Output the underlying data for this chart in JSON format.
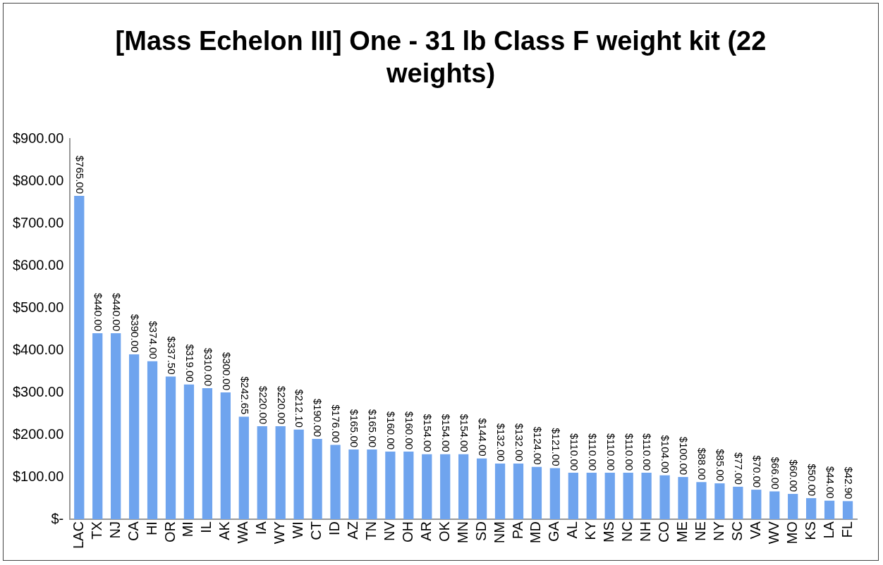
{
  "chart_data": {
    "type": "bar",
    "title": "[Mass Echelon III]  One - 31 lb Class F weight kit (22 weights)",
    "categories": [
      "LAC",
      "TX",
      "NJ",
      "CA",
      "HI",
      "OR",
      "MI",
      "IL",
      "AK",
      "WA",
      "IA",
      "WY",
      "WI",
      "CT",
      "ID",
      "AZ",
      "TN",
      "NV",
      "OH",
      "AR",
      "OK",
      "MN",
      "SD",
      "NM",
      "PA",
      "MD",
      "GA",
      "AL",
      "KY",
      "MS",
      "NC",
      "NH",
      "CO",
      "ME",
      "NE",
      "NY",
      "SC",
      "VA",
      "WV",
      "MO",
      "KS",
      "LA",
      "FL"
    ],
    "values": [
      765,
      440,
      440,
      390,
      374,
      337.5,
      319,
      310,
      300,
      242.65,
      220,
      220,
      212.1,
      190,
      176,
      165,
      165,
      160,
      160,
      154,
      154,
      154,
      144,
      132,
      132,
      124,
      121,
      110,
      110,
      110,
      110,
      110,
      104,
      100,
      88,
      85,
      77,
      70,
      66,
      60,
      50,
      44,
      42.9
    ],
    "value_labels": [
      "$765.00",
      "$440.00",
      "$440.00",
      "$390.00",
      "$374.00",
      "$337.50",
      "$319.00",
      "$310.00",
      "$300.00",
      "$242.65",
      "$220.00",
      "$220.00",
      "$212.10",
      "$190.00",
      "$176.00",
      "$165.00",
      "$165.00",
      "$160.00",
      "$160.00",
      "$154.00",
      "$154.00",
      "$154.00",
      "$144.00",
      "$132.00",
      "$132.00",
      "$124.00",
      "$121.00",
      "$110.00",
      "$110.00",
      "$110.00",
      "$110.00",
      "$110.00",
      "$104.00",
      "$100.00",
      "$88.00",
      "$85.00",
      "$77.00",
      "$70.00",
      "$66.00",
      "$60.00",
      "$50.00",
      "$44.00",
      "$42.90"
    ],
    "color": "#6fa4ee",
    "ylim": [
      0,
      900
    ],
    "yticks": [
      {
        "value": 0,
        "label": "$-"
      },
      {
        "value": 100,
        "label": "$100.00"
      },
      {
        "value": 200,
        "label": "$200.00"
      },
      {
        "value": 300,
        "label": "$300.00"
      },
      {
        "value": 400,
        "label": "$400.00"
      },
      {
        "value": 500,
        "label": "$500.00"
      },
      {
        "value": 600,
        "label": "$600.00"
      },
      {
        "value": 700,
        "label": "$700.00"
      },
      {
        "value": 800,
        "label": "$800.00"
      },
      {
        "value": 900,
        "label": "$900.00"
      }
    ],
    "grid": false,
    "legend": false
  }
}
